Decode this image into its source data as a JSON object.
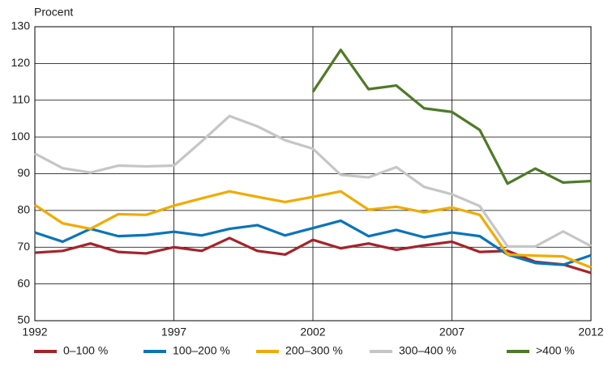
{
  "chart_data": {
    "type": "line",
    "y_label": "Procent",
    "x": [
      1992,
      1993,
      1994,
      1995,
      1996,
      1997,
      1998,
      1999,
      2000,
      2001,
      2002,
      2003,
      2004,
      2005,
      2006,
      2007,
      2008,
      2009,
      2010,
      2011,
      2012
    ],
    "xlim": [
      1992,
      2012
    ],
    "xticks": [
      1992,
      1997,
      2002,
      2007,
      2012
    ],
    "ylim": [
      50,
      130
    ],
    "yticks": [
      50,
      60,
      70,
      80,
      90,
      100,
      110,
      120,
      130
    ],
    "grid": true,
    "legend": "bottom",
    "series": [
      {
        "name": "0–100 %",
        "color": "#a3242b",
        "values": [
          68.5,
          69,
          71,
          68.7,
          68.3,
          70,
          69,
          72.5,
          69,
          68,
          72,
          69.7,
          71,
          69.3,
          70.5,
          71.5,
          68.7,
          69,
          66,
          65.3,
          63
        ]
      },
      {
        "name": "100–200 %",
        "color": "#0a74b8",
        "values": [
          74,
          71.5,
          75,
          73,
          73.3,
          74.2,
          73.2,
          75,
          76,
          73.2,
          75.2,
          77.2,
          73,
          74.7,
          72.7,
          74,
          73,
          68,
          65.7,
          65.2,
          67.8
        ]
      },
      {
        "name": "200–300 %",
        "color": "#f0ab00",
        "values": [
          81.5,
          76.5,
          75,
          79,
          78.8,
          81.3,
          83.3,
          85.2,
          83.7,
          82.3,
          83.7,
          85.2,
          80.2,
          81,
          79.5,
          80.8,
          78.8,
          68,
          67.7,
          67.5,
          64.5
        ]
      },
      {
        "name": "300–400 %",
        "color": "#c6c6c6",
        "values": [
          95.5,
          91.5,
          90.3,
          92.2,
          92,
          92.2,
          98.8,
          105.7,
          102.9,
          99.1,
          96.8,
          89.7,
          89,
          91.8,
          86.4,
          84.4,
          81.2,
          70.2,
          70.2,
          74.3,
          70.3
        ]
      },
      {
        "name": ">400 %",
        "color": "#4f7a28",
        "values": [
          null,
          null,
          null,
          null,
          null,
          null,
          null,
          null,
          null,
          null,
          112.3,
          123.7,
          113,
          114,
          107.8,
          106.8,
          101.9,
          87.3,
          91.4,
          87.6,
          88
        ]
      }
    ]
  }
}
